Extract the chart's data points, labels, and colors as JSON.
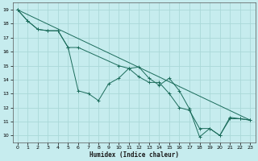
{
  "xlabel": "Humidex (Indice chaleur)",
  "xlim": [
    -0.5,
    23.5
  ],
  "ylim": [
    9.5,
    19.5
  ],
  "yticks": [
    10,
    11,
    12,
    13,
    14,
    15,
    16,
    17,
    18,
    19
  ],
  "xticks": [
    0,
    1,
    2,
    3,
    4,
    5,
    6,
    7,
    8,
    9,
    10,
    11,
    12,
    13,
    14,
    15,
    16,
    17,
    18,
    19,
    20,
    21,
    22,
    23
  ],
  "background_color": "#c6ecee",
  "grid_color": "#aad8d8",
  "line_color": "#1a6b5a",
  "series1_x": [
    0,
    1,
    2,
    3,
    4,
    5,
    6,
    7,
    8,
    9,
    10,
    11,
    12,
    13,
    14,
    15,
    16,
    17,
    18,
    19,
    20,
    21,
    22,
    23
  ],
  "series1_y": [
    19.0,
    18.2,
    17.6,
    17.5,
    17.5,
    16.3,
    13.2,
    13.0,
    12.5,
    13.7,
    14.1,
    14.8,
    14.9,
    14.1,
    13.6,
    14.1,
    13.2,
    11.9,
    9.9,
    10.5,
    10.0,
    11.3,
    11.2,
    11.1
  ],
  "series2_x": [
    0,
    1,
    2,
    3,
    4,
    5,
    6,
    10,
    11,
    12,
    13,
    14,
    15,
    16,
    17,
    18,
    19,
    20,
    21,
    22,
    23
  ],
  "series2_y": [
    19.0,
    18.2,
    17.6,
    17.5,
    17.5,
    16.3,
    16.3,
    15.0,
    14.8,
    14.2,
    13.8,
    13.8,
    13.0,
    12.0,
    11.8,
    10.5,
    10.5,
    10.0,
    11.2,
    11.2,
    11.1
  ],
  "series3_x": [
    0,
    23
  ],
  "series3_y": [
    19.0,
    11.1
  ]
}
